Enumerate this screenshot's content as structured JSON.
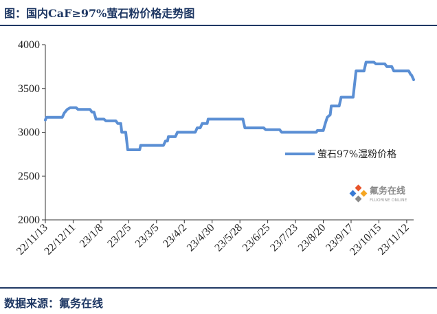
{
  "header": {
    "title": "图：国内CaF≥97%萤石粉价格走势图"
  },
  "footer": {
    "source": "数据来源：氟务在线"
  },
  "watermark": {
    "name": "氟务在线",
    "subtitle": "FLUORINE ONLINE",
    "colors": [
      "#e8542a",
      "#3a7bd5",
      "#f5a623",
      "#8a8a8a"
    ]
  },
  "chart_data": {
    "type": "line",
    "title": "",
    "xlabel": "",
    "ylabel": "",
    "ylim": [
      2000,
      4000
    ],
    "yticks": [
      2000,
      2500,
      3000,
      3500,
      4000
    ],
    "x_range": [
      "2022-11-13",
      "2023-11-19"
    ],
    "xtick_labels": [
      "22/11/13",
      "22/12/11",
      "23/1/8",
      "23/2/5",
      "23/3/5",
      "23/4/2",
      "23/4/30",
      "23/5/28",
      "23/6/25",
      "23/7/23",
      "23/8/20",
      "23/9/17",
      "23/10/15",
      "23/11/12"
    ],
    "xtick_dates": [
      "2022-11-13",
      "2022-12-11",
      "2023-01-08",
      "2023-02-05",
      "2023-03-05",
      "2023-04-02",
      "2023-04-30",
      "2023-05-28",
      "2023-06-25",
      "2023-07-23",
      "2023-08-20",
      "2023-09-17",
      "2023-10-15",
      "2023-11-12"
    ],
    "grid": false,
    "legend_position": "center-right",
    "series": [
      {
        "name": "萤石97%湿粉价格",
        "color": "#5b8fd4",
        "points": [
          [
            "2022-11-13",
            3140
          ],
          [
            "2022-11-14",
            3170
          ],
          [
            "2022-11-30",
            3170
          ],
          [
            "2022-12-02",
            3220
          ],
          [
            "2022-12-05",
            3260
          ],
          [
            "2022-12-08",
            3280
          ],
          [
            "2022-12-14",
            3280
          ],
          [
            "2022-12-16",
            3260
          ],
          [
            "2022-12-28",
            3260
          ],
          [
            "2022-12-30",
            3230
          ],
          [
            "2023-01-01",
            3230
          ],
          [
            "2023-01-03",
            3150
          ],
          [
            "2023-01-11",
            3150
          ],
          [
            "2023-01-13",
            3130
          ],
          [
            "2023-01-23",
            3130
          ],
          [
            "2023-01-25",
            3100
          ],
          [
            "2023-01-28",
            3100
          ],
          [
            "2023-01-29",
            3000
          ],
          [
            "2023-02-02",
            3000
          ],
          [
            "2023-02-04",
            2800
          ],
          [
            "2023-02-16",
            2800
          ],
          [
            "2023-02-17",
            2850
          ],
          [
            "2023-03-12",
            2850
          ],
          [
            "2023-03-14",
            2900
          ],
          [
            "2023-03-16",
            2900
          ],
          [
            "2023-03-17",
            2950
          ],
          [
            "2023-03-24",
            2950
          ],
          [
            "2023-03-26",
            3000
          ],
          [
            "2023-04-13",
            3000
          ],
          [
            "2023-04-15",
            3050
          ],
          [
            "2023-04-18",
            3050
          ],
          [
            "2023-04-20",
            3100
          ],
          [
            "2023-04-25",
            3100
          ],
          [
            "2023-04-26",
            3150
          ],
          [
            "2023-05-31",
            3150
          ],
          [
            "2023-06-02",
            3050
          ],
          [
            "2023-06-21",
            3050
          ],
          [
            "2023-06-23",
            3030
          ],
          [
            "2023-07-07",
            3030
          ],
          [
            "2023-07-09",
            3000
          ],
          [
            "2023-08-13",
            3000
          ],
          [
            "2023-08-14",
            3020
          ],
          [
            "2023-08-20",
            3020
          ],
          [
            "2023-08-22",
            3100
          ],
          [
            "2023-08-24",
            3170
          ],
          [
            "2023-08-27",
            3200
          ],
          [
            "2023-08-28",
            3300
          ],
          [
            "2023-09-05",
            3300
          ],
          [
            "2023-09-07",
            3400
          ],
          [
            "2023-09-19",
            3400
          ],
          [
            "2023-09-22",
            3700
          ],
          [
            "2023-09-30",
            3700
          ],
          [
            "2023-10-02",
            3800
          ],
          [
            "2023-10-10",
            3800
          ],
          [
            "2023-10-12",
            3780
          ],
          [
            "2023-10-21",
            3780
          ],
          [
            "2023-10-23",
            3750
          ],
          [
            "2023-10-28",
            3750
          ],
          [
            "2023-10-30",
            3700
          ],
          [
            "2023-11-14",
            3700
          ],
          [
            "2023-11-16",
            3660
          ],
          [
            "2023-11-17",
            3650
          ],
          [
            "2023-11-19",
            3600
          ]
        ]
      }
    ]
  }
}
